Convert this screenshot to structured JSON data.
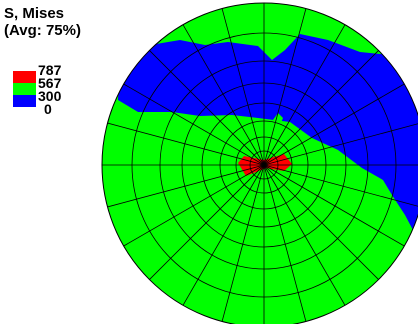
{
  "legend": {
    "title_line1": "S, Mises",
    "title_line2": "(Avg: 75%)",
    "levels": [
      {
        "label": "787",
        "color": "#ff0000"
      },
      {
        "label": "567",
        "color": "#00ff00"
      },
      {
        "label": "300",
        "color": "#0000ff"
      },
      {
        "label": "0",
        "color": ""
      }
    ]
  },
  "colors": {
    "red": "#ff0000",
    "green": "#00ff00",
    "blue": "#0000ff",
    "mesh_line": "#000000"
  }
}
